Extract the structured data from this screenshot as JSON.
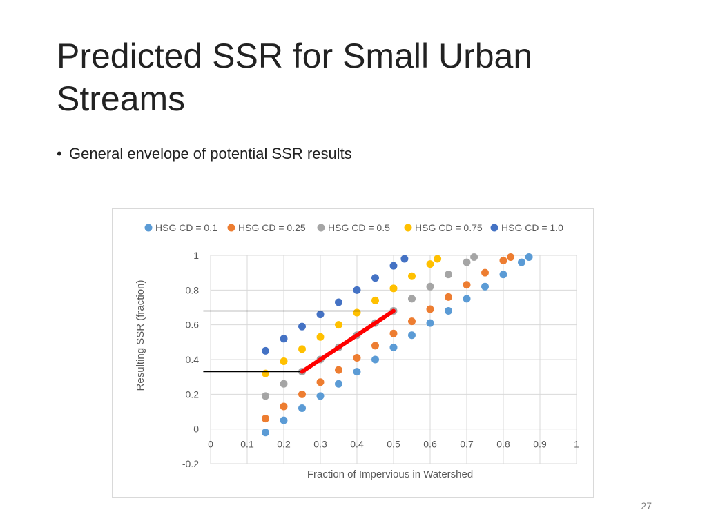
{
  "slide": {
    "title": "Predicted SSR for Small Urban Streams",
    "bullet": "General envelope of potential SSR results",
    "page_number": "27"
  },
  "colors": {
    "hsg_0_1": "#5b9bd5",
    "hsg_0_25": "#ed7d31",
    "hsg_0_5": "#a5a5a5",
    "hsg_0_75": "#ffc000",
    "hsg_1_0": "#4472c4",
    "envelope_line": "#ff0000",
    "guide_line": "#000000"
  },
  "chart_data": {
    "type": "scatter",
    "title": "",
    "xlabel": "Fraction of Impervious in Watershed",
    "ylabel": "Resulting SSR (fraction)",
    "xlim": [
      0,
      1
    ],
    "ylim": [
      -0.2,
      1
    ],
    "xticks": [
      "0",
      "0.1",
      "0.2",
      "0.3",
      "0.4",
      "0.5",
      "0.6",
      "0.7",
      "0.8",
      "0.9",
      "1"
    ],
    "yticks": [
      "-0.2",
      "0",
      "0.2",
      "0.4",
      "0.6",
      "0.8",
      "1"
    ],
    "grid": true,
    "legend_position": "top",
    "series": [
      {
        "name": "HSG CD = 0.1",
        "color": "#5b9bd5",
        "points": [
          [
            0.15,
            -0.02
          ],
          [
            0.2,
            0.05
          ],
          [
            0.25,
            0.12
          ],
          [
            0.3,
            0.19
          ],
          [
            0.35,
            0.26
          ],
          [
            0.4,
            0.33
          ],
          [
            0.45,
            0.4
          ],
          [
            0.5,
            0.47
          ],
          [
            0.55,
            0.54
          ],
          [
            0.6,
            0.61
          ],
          [
            0.65,
            0.68
          ],
          [
            0.7,
            0.75
          ],
          [
            0.75,
            0.82
          ],
          [
            0.8,
            0.89
          ],
          [
            0.85,
            0.96
          ],
          [
            0.87,
            0.99
          ]
        ]
      },
      {
        "name": "HSG CD = 0.25",
        "color": "#ed7d31",
        "points": [
          [
            0.15,
            0.06
          ],
          [
            0.2,
            0.13
          ],
          [
            0.25,
            0.2
          ],
          [
            0.3,
            0.27
          ],
          [
            0.35,
            0.34
          ],
          [
            0.4,
            0.41
          ],
          [
            0.45,
            0.48
          ],
          [
            0.5,
            0.55
          ],
          [
            0.55,
            0.62
          ],
          [
            0.6,
            0.69
          ],
          [
            0.65,
            0.76
          ],
          [
            0.7,
            0.83
          ],
          [
            0.75,
            0.9
          ],
          [
            0.8,
            0.97
          ],
          [
            0.82,
            0.99
          ]
        ]
      },
      {
        "name": "HSG CD = 0.5",
        "color": "#a5a5a5",
        "points": [
          [
            0.15,
            0.19
          ],
          [
            0.2,
            0.26
          ],
          [
            0.25,
            0.33
          ],
          [
            0.3,
            0.4
          ],
          [
            0.35,
            0.47
          ],
          [
            0.4,
            0.54
          ],
          [
            0.45,
            0.61
          ],
          [
            0.5,
            0.68
          ],
          [
            0.55,
            0.75
          ],
          [
            0.6,
            0.82
          ],
          [
            0.65,
            0.89
          ],
          [
            0.7,
            0.96
          ],
          [
            0.72,
            0.99
          ]
        ]
      },
      {
        "name": "HSG CD = 0.75",
        "color": "#ffc000",
        "points": [
          [
            0.15,
            0.32
          ],
          [
            0.2,
            0.39
          ],
          [
            0.25,
            0.46
          ],
          [
            0.3,
            0.53
          ],
          [
            0.35,
            0.6
          ],
          [
            0.4,
            0.67
          ],
          [
            0.45,
            0.74
          ],
          [
            0.5,
            0.81
          ],
          [
            0.55,
            0.88
          ],
          [
            0.6,
            0.95
          ],
          [
            0.62,
            0.98
          ]
        ]
      },
      {
        "name": "HSG CD = 1.0",
        "color": "#4472c4",
        "points": [
          [
            0.15,
            0.45
          ],
          [
            0.2,
            0.52
          ],
          [
            0.25,
            0.59
          ],
          [
            0.3,
            0.66
          ],
          [
            0.35,
            0.73
          ],
          [
            0.4,
            0.8
          ],
          [
            0.45,
            0.87
          ],
          [
            0.5,
            0.94
          ],
          [
            0.53,
            0.98
          ]
        ]
      }
    ],
    "annotations": {
      "envelope_segment": [
        [
          0.25,
          0.33
        ],
        [
          0.5,
          0.68
        ]
      ],
      "guide_lines": [
        {
          "from": [
            -0.02,
            0.68
          ],
          "to": [
            0.5,
            0.68
          ]
        },
        {
          "from": [
            -0.02,
            0.33
          ],
          "to": [
            0.25,
            0.33
          ]
        }
      ]
    }
  }
}
